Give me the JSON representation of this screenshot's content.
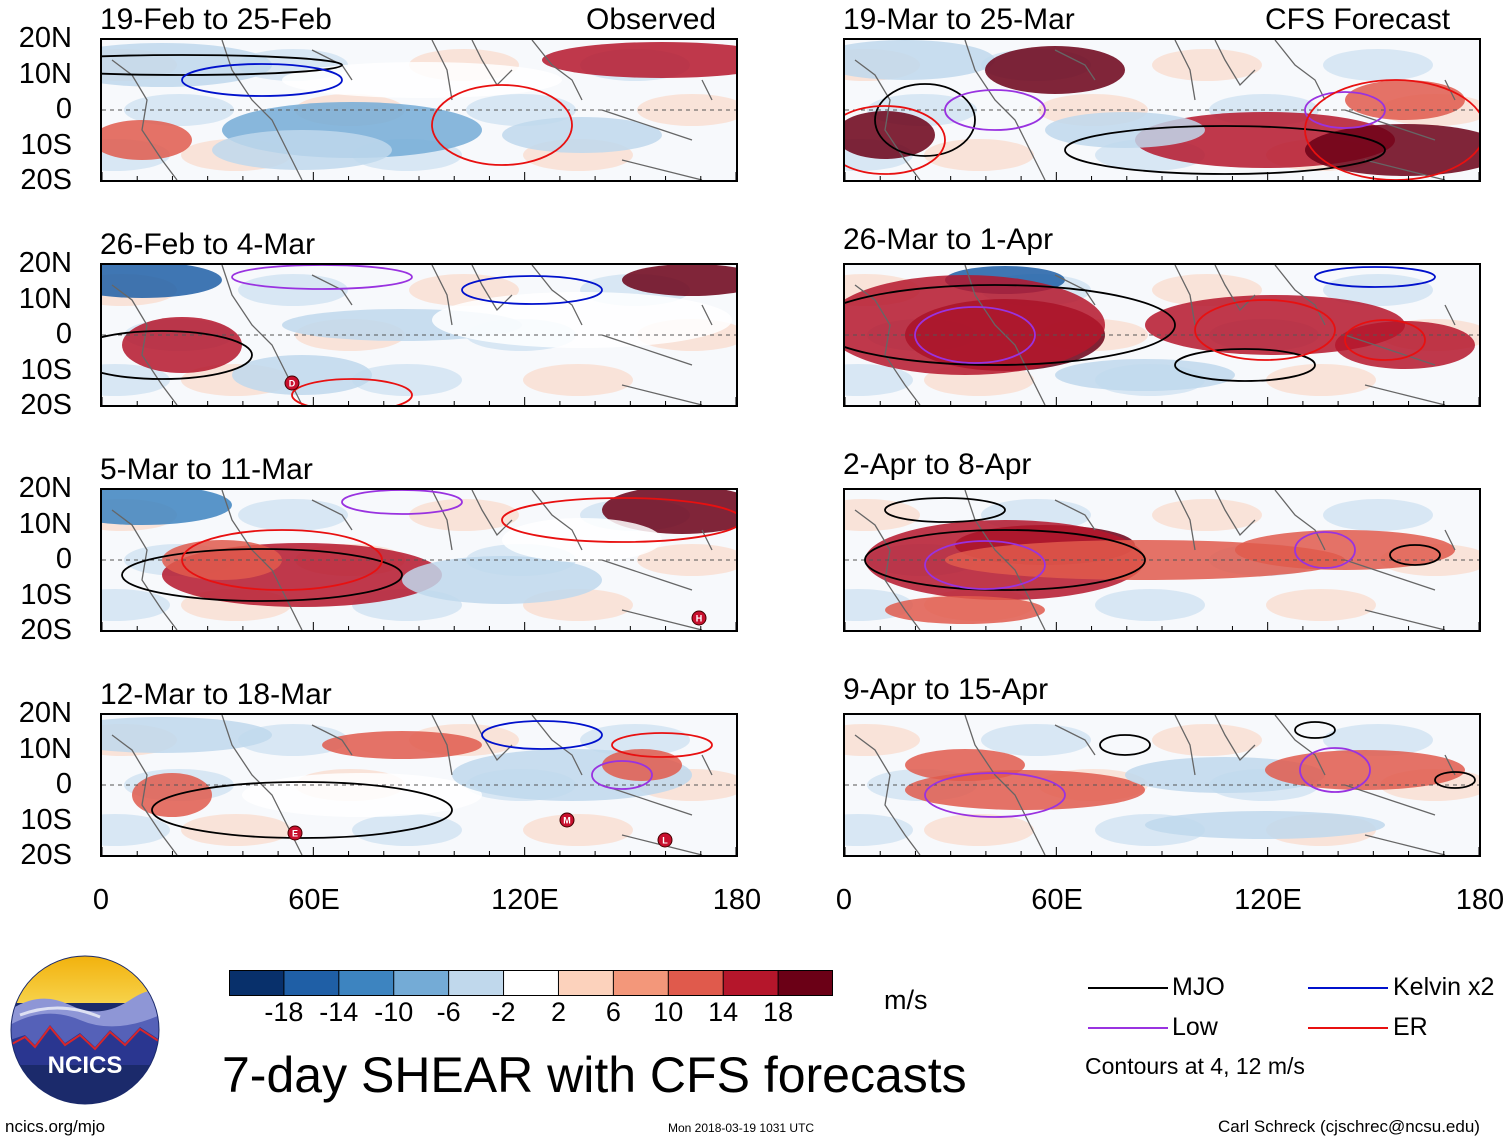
{
  "main_title": "7-day SHEAR with CFS forecasts",
  "observed_label": "Observed",
  "forecast_label": "CFS Forecast",
  "observed_panels": [
    "19-Feb to 25-Feb",
    "26-Feb to 4-Mar",
    "5-Mar to 11-Mar",
    "12-Mar to 18-Mar"
  ],
  "forecast_panels": [
    "19-Mar to 25-Mar",
    "26-Mar to 1-Apr",
    "2-Apr to 8-Apr",
    "9-Apr to 15-Apr"
  ],
  "lat_labels": [
    "20N",
    "10N",
    "0",
    "10S",
    "20S"
  ],
  "lon_labels": [
    "0",
    "60E",
    "120E",
    "180"
  ],
  "colorbar": {
    "unit": "m/s",
    "tick_labels": [
      "-18",
      "-14",
      "-10",
      "-6",
      "-2",
      "2",
      "6",
      "10",
      "14",
      "18"
    ],
    "colors": [
      "#08306b",
      "#1f5fa6",
      "#3d84c0",
      "#74abd6",
      "#c0d8ec",
      "#ffffff",
      "#fcd2bc",
      "#f3977a",
      "#e05a4c",
      "#b5162b",
      "#6b0016"
    ]
  },
  "legend": {
    "items": [
      {
        "label": "MJO",
        "color": "#000000"
      },
      {
        "label": "Kelvin x2",
        "color": "#0011cc"
      },
      {
        "label": "Low",
        "color": "#9932e0"
      },
      {
        "label": "ER",
        "color": "#e81010"
      }
    ],
    "contours_note": "Contours at 4, 12 m/s"
  },
  "storm_markers": [
    {
      "panel": 1,
      "label": "D"
    },
    {
      "panel": 2,
      "label": "H"
    },
    {
      "panel": 3,
      "label": "E"
    },
    {
      "panel": 3,
      "label": "M"
    },
    {
      "panel": 3,
      "label": "L"
    }
  ],
  "logo": {
    "text": "NCICS"
  },
  "footer": {
    "url": "ncics.org/mjo",
    "timestamp": "Mon 2018-03-19 1031 UTC",
    "credit": "Carl Schreck (cjschrec@ncsu.edu)"
  }
}
